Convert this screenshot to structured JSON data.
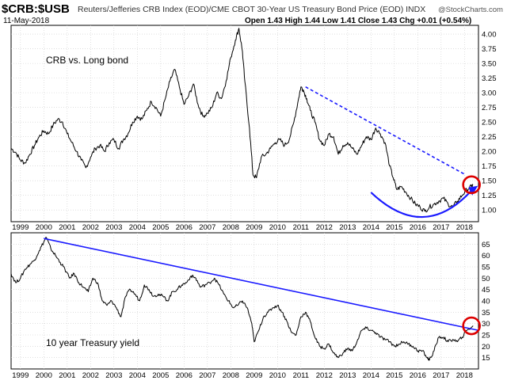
{
  "header": {
    "symbol": "$CRB:$USB",
    "description": "Reuters/Jefferies CRB Index (EOD)/CME CBOT 30-Year US Treasury Bond Price (EOD)  INDX",
    "date": "11-May-2018",
    "ohlc": "Open 1.43  High 1.44  Low 1.41  Close 1.43  Chg +0.01 (+0.54%)",
    "watermark": "@StockCharts.com"
  },
  "colors": {
    "price_line": "#000000",
    "trend_blue": "#1a1aff",
    "highlight_red": "#dd0000",
    "grid": "#cccccc"
  },
  "chart_data": [
    {
      "type": "line",
      "title": "CRB vs. Long bond",
      "x_range": [
        1998.6,
        2018.6
      ],
      "ylim": [
        0.8,
        4.15
      ],
      "y_ticks": [
        1.0,
        1.25,
        1.5,
        1.75,
        2.0,
        2.25,
        2.5,
        2.75,
        3.0,
        3.25,
        3.5,
        3.75,
        4.0
      ],
      "y_tick_labels": [
        "1.00",
        "1.25",
        "1.50",
        "1.75",
        "2.00",
        "2.25",
        "2.50",
        "2.75",
        "3.00",
        "3.25",
        "3.50",
        "3.75",
        "4.00"
      ],
      "x_ticks": [
        1999,
        2000,
        2001,
        2002,
        2003,
        2004,
        2005,
        2006,
        2007,
        2008,
        2009,
        2010,
        2011,
        2012,
        2013,
        2014,
        2015,
        2016,
        2017,
        2018
      ],
      "x_tick_labels": [
        "1999",
        "2000",
        "2001",
        "2002",
        "2003",
        "2004",
        "2005",
        "2006",
        "2007",
        "2008",
        "2009",
        "2010",
        "2011",
        "2012",
        "2013",
        "2014",
        "2015",
        "2016",
        "2017",
        "2018"
      ],
      "grid": true,
      "series": [
        {
          "x": [
            1998.6,
            1998.8,
            1999.0,
            1999.2,
            1999.4,
            1999.6,
            1999.8,
            2000.0,
            2000.2,
            2000.4,
            2000.6,
            2000.8,
            2001.0,
            2001.2,
            2001.4,
            2001.6,
            2001.8,
            2002.0,
            2002.2,
            2002.4,
            2002.6,
            2002.8,
            2003.0,
            2003.2,
            2003.4,
            2003.6,
            2003.8,
            2004.0,
            2004.2,
            2004.4,
            2004.6,
            2004.8,
            2005.0,
            2005.2,
            2005.4,
            2005.6,
            2005.8,
            2006.0,
            2006.2,
            2006.4,
            2006.6,
            2006.8,
            2007.0,
            2007.2,
            2007.4,
            2007.6,
            2007.8,
            2008.0,
            2008.2,
            2008.35,
            2008.5,
            2008.6,
            2008.8,
            2008.95,
            2009.1,
            2009.3,
            2009.5,
            2009.7,
            2009.9,
            2010.1,
            2010.3,
            2010.5,
            2010.7,
            2010.9,
            2011.0,
            2011.1,
            2011.25,
            2011.4,
            2011.6,
            2011.8,
            2012.0,
            2012.2,
            2012.4,
            2012.6,
            2012.8,
            2013.0,
            2013.2,
            2013.4,
            2013.6,
            2013.8,
            2014.0,
            2014.2,
            2014.4,
            2014.6,
            2014.8,
            2014.95,
            2015.1,
            2015.3,
            2015.5,
            2015.7,
            2015.9,
            2016.1,
            2016.3,
            2016.5,
            2016.7,
            2016.9,
            2017.1,
            2017.3,
            2017.5,
            2017.7,
            2017.9,
            2018.1,
            2018.3,
            2018.37
          ],
          "values": [
            2.05,
            1.98,
            1.85,
            1.8,
            1.95,
            2.1,
            2.25,
            2.35,
            2.3,
            2.45,
            2.55,
            2.5,
            2.3,
            2.15,
            2.0,
            1.85,
            1.72,
            1.9,
            2.05,
            2.1,
            2.0,
            2.15,
            2.2,
            2.05,
            2.2,
            2.3,
            2.5,
            2.6,
            2.55,
            2.7,
            2.85,
            2.75,
            2.6,
            2.9,
            3.2,
            3.4,
            3.1,
            2.8,
            2.95,
            3.15,
            2.8,
            2.6,
            2.65,
            2.75,
            3.0,
            2.9,
            3.2,
            3.6,
            3.9,
            4.1,
            3.7,
            3.2,
            2.4,
            1.6,
            1.55,
            1.9,
            1.95,
            2.05,
            2.15,
            2.2,
            2.1,
            2.2,
            2.5,
            2.9,
            3.1,
            3.05,
            2.9,
            2.7,
            2.5,
            2.2,
            2.1,
            2.3,
            2.25,
            1.95,
            2.1,
            2.15,
            2.05,
            1.95,
            2.1,
            2.25,
            2.2,
            2.4,
            2.3,
            2.15,
            1.75,
            1.55,
            1.35,
            1.4,
            1.3,
            1.2,
            1.1,
            1.05,
            0.98,
            1.05,
            1.1,
            1.15,
            1.2,
            1.1,
            1.05,
            1.15,
            1.25,
            1.35,
            1.4,
            1.43
          ]
        }
      ]
    },
    {
      "type": "line",
      "title": "10 year Treasury yield",
      "x_range": [
        1998.6,
        2018.6
      ],
      "ylim": [
        10,
        70
      ],
      "y_ticks": [
        15,
        20,
        25,
        30,
        35,
        40,
        45,
        50,
        55,
        60,
        65
      ],
      "y_tick_labels": [
        "15",
        "20",
        "25",
        "30",
        "35",
        "40",
        "45",
        "50",
        "55",
        "60",
        "65"
      ],
      "x_ticks": [
        1999,
        2000,
        2001,
        2002,
        2003,
        2004,
        2005,
        2006,
        2007,
        2008,
        2009,
        2010,
        2011,
        2012,
        2013,
        2014,
        2015,
        2016,
        2017,
        2018
      ],
      "x_tick_labels": [
        "1999",
        "2000",
        "2001",
        "2002",
        "2003",
        "2004",
        "2005",
        "2006",
        "2007",
        "2008",
        "2009",
        "2010",
        "2011",
        "2012",
        "2013",
        "2014",
        "2015",
        "2016",
        "2017",
        "2018"
      ],
      "grid": true,
      "series": [
        {
          "x": [
            1998.6,
            1998.8,
            1999.0,
            1999.2,
            1999.4,
            1999.6,
            1999.8,
            2000.0,
            2000.1,
            2000.3,
            2000.5,
            2000.7,
            2000.9,
            2001.1,
            2001.3,
            2001.5,
            2001.7,
            2001.9,
            2002.1,
            2002.3,
            2002.5,
            2002.7,
            2002.9,
            2003.1,
            2003.3,
            2003.5,
            2003.7,
            2003.9,
            2004.1,
            2004.3,
            2004.5,
            2004.7,
            2004.9,
            2005.1,
            2005.3,
            2005.5,
            2005.7,
            2005.9,
            2006.1,
            2006.3,
            2006.5,
            2006.7,
            2006.9,
            2007.1,
            2007.3,
            2007.5,
            2007.7,
            2007.9,
            2008.1,
            2008.3,
            2008.5,
            2008.7,
            2008.9,
            2009.0,
            2009.2,
            2009.4,
            2009.6,
            2009.8,
            2010.0,
            2010.2,
            2010.4,
            2010.6,
            2010.8,
            2011.0,
            2011.2,
            2011.4,
            2011.6,
            2011.8,
            2012.0,
            2012.2,
            2012.4,
            2012.6,
            2012.8,
            2013.0,
            2013.2,
            2013.4,
            2013.6,
            2013.8,
            2014.0,
            2014.2,
            2014.4,
            2014.6,
            2014.8,
            2015.0,
            2015.2,
            2015.4,
            2015.6,
            2015.8,
            2016.0,
            2016.2,
            2016.4,
            2016.5,
            2016.7,
            2016.9,
            2017.1,
            2017.3,
            2017.5,
            2017.7,
            2017.9,
            2018.1,
            2018.37
          ],
          "values": [
            52,
            48,
            50,
            54,
            56,
            58,
            62,
            66,
            68,
            63,
            60,
            57,
            54,
            50,
            52,
            48,
            46,
            44,
            50,
            48,
            40,
            38,
            40,
            37,
            33,
            42,
            45,
            43,
            40,
            47,
            45,
            42,
            43,
            42,
            40,
            44,
            45,
            47,
            48,
            51,
            50,
            46,
            47,
            48,
            50,
            47,
            43,
            40,
            37,
            38,
            40,
            37,
            30,
            22,
            27,
            33,
            35,
            37,
            38,
            35,
            31,
            26,
            25,
            33,
            35,
            31,
            24,
            20,
            19,
            21,
            17,
            15,
            17,
            19,
            18,
            22,
            27,
            28,
            27,
            26,
            24,
            23,
            22,
            20,
            21,
            22,
            21,
            20,
            18,
            18,
            15,
            14,
            18,
            24,
            24,
            22,
            23,
            22,
            24,
            27,
            29
          ]
        }
      ]
    }
  ],
  "annotations": {
    "top_trendline": {
      "x": [
        2011.2,
        2018.05
      ],
      "y": [
        3.1,
        1.6
      ]
    },
    "top_arc": {
      "start": [
        2014.0,
        1.3
      ],
      "bottom": [
        2016.2,
        0.88
      ],
      "end": [
        2018.3,
        1.33
      ]
    },
    "bottom_trendline": {
      "x": [
        2000.0,
        2018.6
      ],
      "y": [
        67.5,
        27.0
      ]
    },
    "top_circle": {
      "x": 2018.3,
      "y": 1.43
    },
    "bottom_circle": {
      "x": 2018.3,
      "y": 29
    }
  }
}
